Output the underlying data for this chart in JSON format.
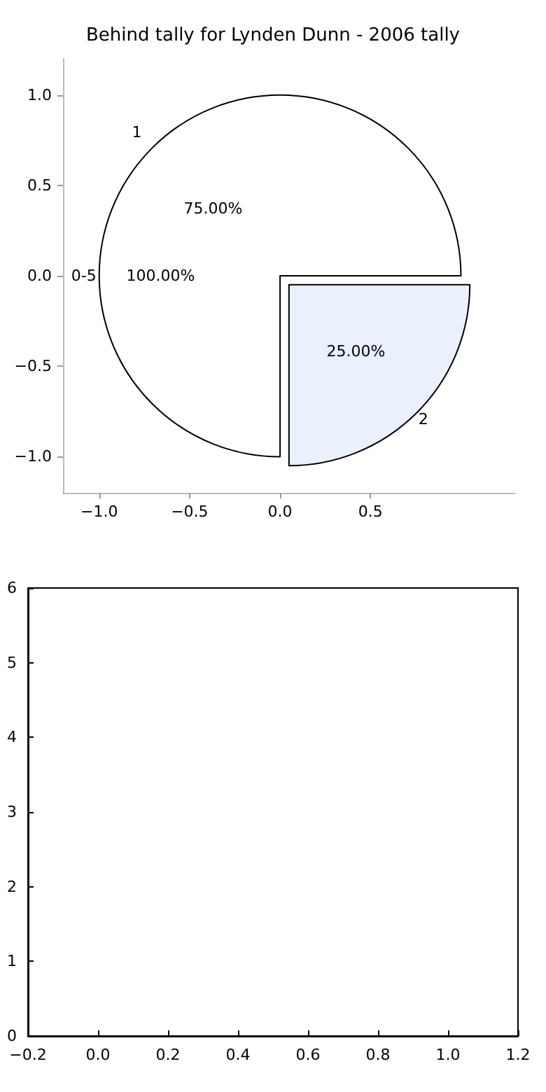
{
  "chart_data": [
    {
      "type": "pie",
      "title": "Behind tally for Lynden Dunn - 2006 tally",
      "categories": [
        "1",
        "2"
      ],
      "values": [
        75,
        25
      ],
      "colors": [
        "#ffffff",
        "#eaf0fc"
      ],
      "value_labels": [
        "75.00%",
        "25.00%"
      ],
      "annotations": [
        "0-5",
        "100.00%"
      ],
      "legend": false
    },
    {
      "type": "scatter",
      "xlim": [
        -1.2,
        1.3
      ],
      "ylim": [
        -1.2,
        1.2
      ],
      "xticks": [
        {
          "value": -1,
          "label": "−1.0"
        },
        {
          "value": -0.5,
          "label": "−0.5"
        },
        {
          "value": 0,
          "label": "0.0"
        },
        {
          "value": 0.5,
          "label": "0.5"
        }
      ],
      "yticks": [
        {
          "value": -1,
          "label": "−1.0"
        },
        {
          "value": -0.5,
          "label": "−0.5"
        },
        {
          "value": 0,
          "label": "0.0"
        },
        {
          "value": 0.5,
          "label": "0.5"
        },
        {
          "value": 1,
          "label": "1.0"
        }
      ],
      "grid": false,
      "legend": false
    },
    {
      "type": "scatter",
      "xlim": [
        -0.2,
        1.2
      ],
      "ylim": [
        0,
        6
      ],
      "xticks": [
        {
          "value": -0.2,
          "label": "−0.2"
        },
        {
          "value": 0,
          "label": "0.0"
        },
        {
          "value": 0.2,
          "label": "0.2"
        },
        {
          "value": 0.4,
          "label": "0.4"
        },
        {
          "value": 0.6,
          "label": "0.6"
        },
        {
          "value": 0.8,
          "label": "0.8"
        },
        {
          "value": 1,
          "label": "1.0"
        },
        {
          "value": 1.2,
          "label": "1.2"
        }
      ],
      "yticks": [
        0,
        1,
        2,
        3,
        4,
        5,
        6
      ],
      "grid": false,
      "legend": false
    }
  ]
}
